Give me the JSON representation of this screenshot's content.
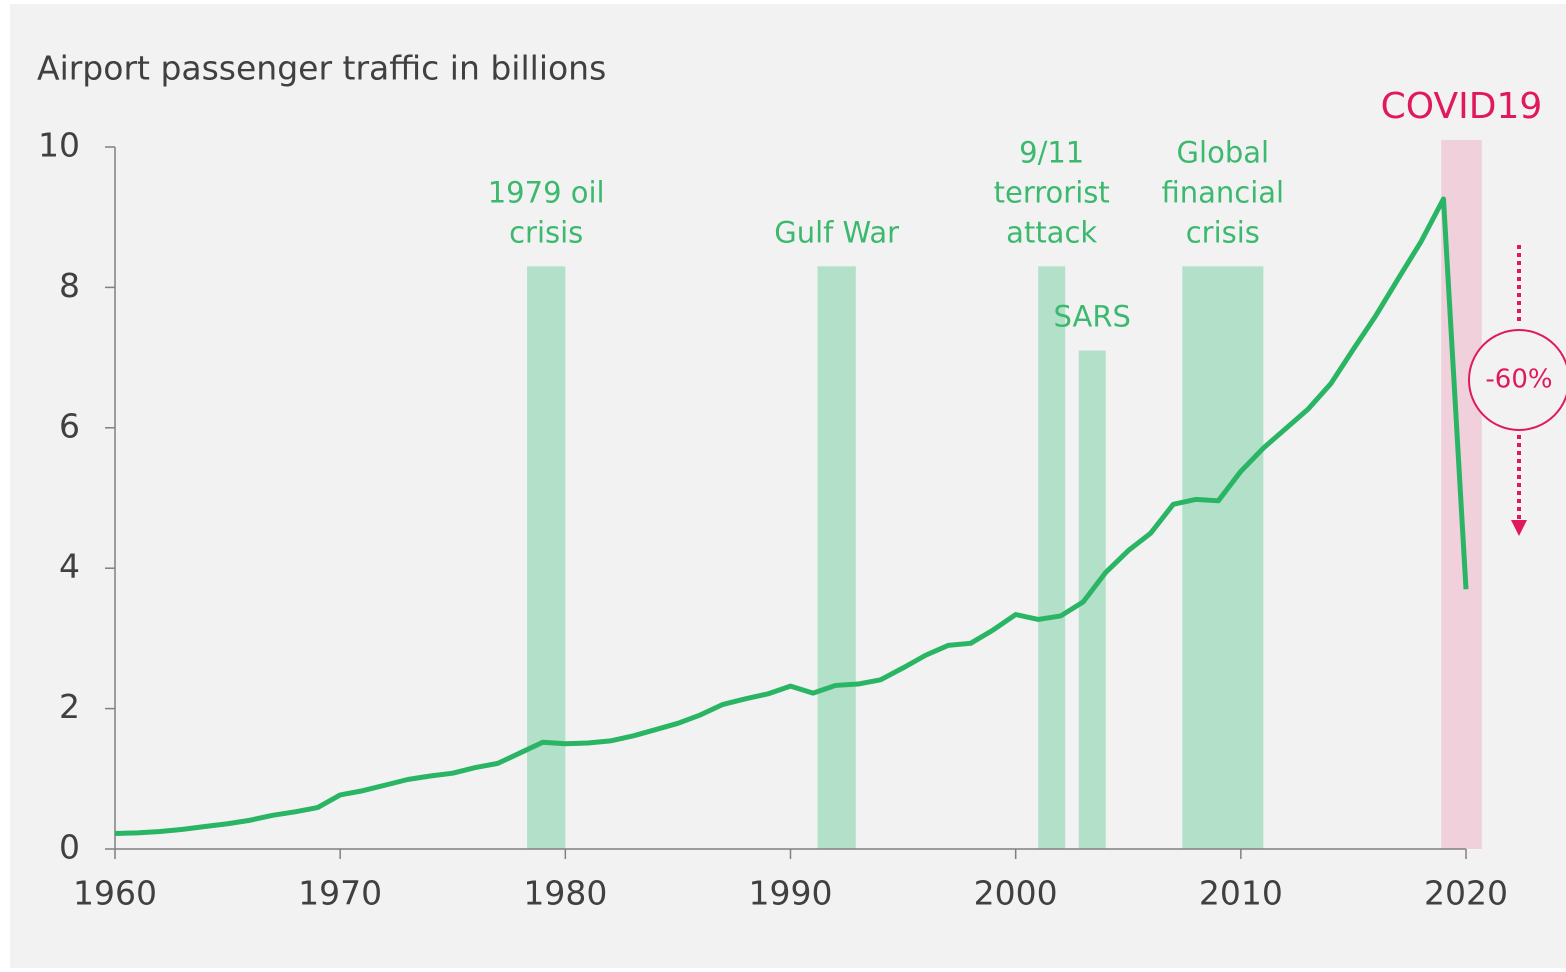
{
  "chart_data": {
    "type": "line",
    "title": "Airport passenger traffic in billions",
    "x": [
      1960,
      1961,
      1962,
      1963,
      1964,
      1965,
      1966,
      1967,
      1968,
      1969,
      1970,
      1971,
      1972,
      1973,
      1974,
      1975,
      1976,
      1977,
      1978,
      1979,
      1980,
      1981,
      1982,
      1983,
      1984,
      1985,
      1986,
      1987,
      1988,
      1989,
      1990,
      1991,
      1992,
      1993,
      1994,
      1995,
      1996,
      1997,
      1998,
      1999,
      2000,
      2001,
      2002,
      2003,
      2004,
      2005,
      2006,
      2007,
      2008,
      2009,
      2010,
      2011,
      2012,
      2013,
      2014,
      2015,
      2016,
      2017,
      2018,
      2019,
      2020
    ],
    "series": [
      {
        "name": "Airport passenger traffic",
        "color": "#2ab565",
        "values": [
          0.22,
          0.23,
          0.25,
          0.28,
          0.32,
          0.36,
          0.41,
          0.48,
          0.53,
          0.59,
          0.77,
          0.83,
          0.91,
          0.99,
          1.04,
          1.08,
          1.16,
          1.22,
          1.37,
          1.52,
          1.5,
          1.51,
          1.54,
          1.61,
          1.7,
          1.79,
          1.91,
          2.06,
          2.14,
          2.21,
          2.32,
          2.22,
          2.33,
          2.35,
          2.41,
          2.58,
          2.76,
          2.9,
          2.93,
          3.12,
          3.34,
          3.27,
          3.32,
          3.52,
          3.94,
          4.25,
          4.5,
          4.91,
          4.98,
          4.96,
          5.38,
          5.71,
          5.99,
          6.27,
          6.63,
          7.12,
          7.6,
          8.13,
          8.65,
          9.26,
          3.7
        ]
      }
    ],
    "xlim": [
      1960,
      2020
    ],
    "xticks": [
      1960,
      1970,
      1980,
      1990,
      2000,
      2010,
      2020
    ],
    "ylim": [
      0,
      10
    ],
    "yticks": [
      0,
      2,
      4,
      6,
      8,
      10
    ],
    "events": [
      {
        "label": [
          "1979 oil",
          "crisis"
        ],
        "start": 1978.3,
        "end": 1980.0,
        "top": 8.3,
        "color": "#b3e0c8",
        "label_color": "#3cb96e"
      },
      {
        "label": [
          "Gulf War"
        ],
        "start": 1991.2,
        "end": 1992.9,
        "top": 8.3,
        "color": "#b3e0c8",
        "label_color": "#3cb96e"
      },
      {
        "label": [
          "9/11",
          "terrorist",
          "attack"
        ],
        "start": 2001.0,
        "end": 2002.2,
        "top": 8.3,
        "color": "#b3e0c8",
        "label_color": "#3cb96e"
      },
      {
        "label": [
          "SARS"
        ],
        "start": 2002.8,
        "end": 2004.0,
        "top": 7.1,
        "color": "#b3e0c8",
        "label_color": "#3cb96e"
      },
      {
        "label": [
          "Global",
          "financial",
          "crisis"
        ],
        "start": 2007.4,
        "end": 2011.0,
        "top": 8.3,
        "color": "#b3e0c8",
        "label_color": "#3cb96e"
      },
      {
        "label": [
          "COVID19"
        ],
        "start": 2018.9,
        "end": 2020.7,
        "top": 10.1,
        "color": "#f0d0da",
        "label_color": "#e0195a"
      }
    ],
    "annotation": "-60%"
  }
}
